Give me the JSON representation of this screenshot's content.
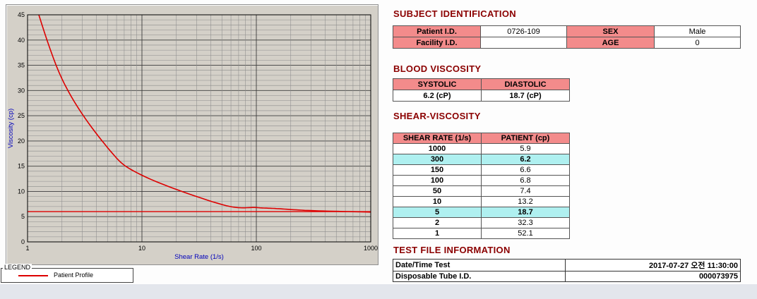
{
  "colors": {
    "section_header": "#8b0000",
    "table_header_bg": "#f38b8b",
    "highlight_bg": "#aff0f0",
    "curve": "#dd0000",
    "axis_label": "#0000bb"
  },
  "chart_data": {
    "type": "line",
    "title": "",
    "xlabel": "Shear Rate (1/s)",
    "ylabel": "Viscosity (cp)",
    "x_scale": "log",
    "xlim": [
      1,
      1000
    ],
    "ylim": [
      0,
      45
    ],
    "x_ticks": [
      1,
      10,
      100,
      1000
    ],
    "y_ticks": [
      0,
      5,
      10,
      15,
      20,
      25,
      30,
      35,
      40,
      45
    ],
    "y_minor_step": 1,
    "grid": true,
    "series": [
      {
        "name": "Patient Profile",
        "x": [
          1,
          2,
          5,
          10,
          50,
          100,
          150,
          300,
          1000
        ],
        "y": [
          52.1,
          32.3,
          18.7,
          13.2,
          7.4,
          6.8,
          6.6,
          6.2,
          5.9
        ]
      }
    ],
    "reference_line_y": 6.0,
    "legend_title": "LEGEND",
    "legend_entries": [
      "Patient Profile"
    ]
  },
  "sections": {
    "subject": "SUBJECT IDENTIFICATION",
    "blood": "BLOOD VISCOSITY",
    "shear": "SHEAR-VISCOSITY",
    "testfile": "TEST FILE INFORMATION"
  },
  "subject_table": {
    "rows": [
      {
        "label1": "Patient I.D.",
        "value1": "0726-109",
        "label2": "SEX",
        "value2": "Male"
      },
      {
        "label1": "Facility I.D.",
        "value1": "",
        "label2": "AGE",
        "value2": "0"
      }
    ]
  },
  "blood_table": {
    "headers": [
      "SYSTOLIC",
      "DIASTOLIC"
    ],
    "values": [
      "6.2 (cP)",
      "18.7 (cP)"
    ]
  },
  "shear_table": {
    "headers": [
      "SHEAR RATE (1/s)",
      "PATIENT (cp)"
    ],
    "rows": [
      {
        "rate": "1000",
        "value": "5.9",
        "highlight": false
      },
      {
        "rate": "300",
        "value": "6.2",
        "highlight": true
      },
      {
        "rate": "150",
        "value": "6.6",
        "highlight": false
      },
      {
        "rate": "100",
        "value": "6.8",
        "highlight": false
      },
      {
        "rate": "50",
        "value": "7.4",
        "highlight": false
      },
      {
        "rate": "10",
        "value": "13.2",
        "highlight": false
      },
      {
        "rate": "5",
        "value": "18.7",
        "highlight": true
      },
      {
        "rate": "2",
        "value": "32.3",
        "highlight": false
      },
      {
        "rate": "1",
        "value": "52.1",
        "highlight": false
      }
    ]
  },
  "testfile_table": {
    "rows": [
      {
        "label": "Date/Time Test",
        "value": "2017-07-27 오전 11:30:00"
      },
      {
        "label": "Disposable Tube I.D.",
        "value": "000073975"
      }
    ]
  }
}
